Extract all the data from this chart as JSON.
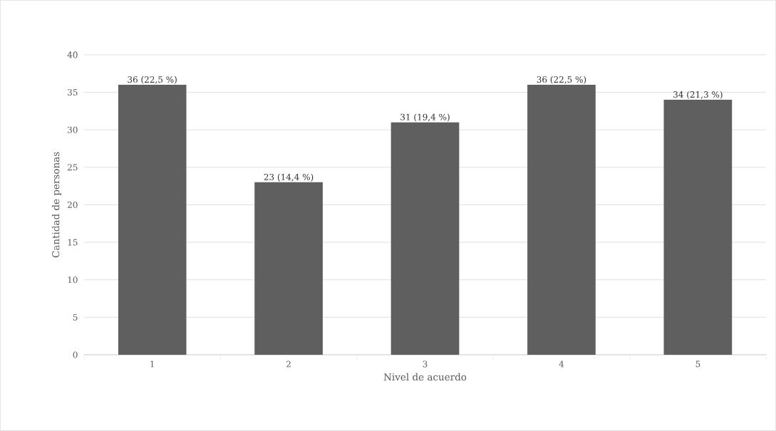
{
  "chart_data": {
    "type": "bar",
    "xlabel": "Nivel de acuerdo",
    "ylabel": "Cantidad de personas",
    "categories": [
      "1",
      "2",
      "3",
      "4",
      "5"
    ],
    "values": [
      36,
      23,
      31,
      36,
      34
    ],
    "value_labels": [
      "36 (22,5 %)",
      "23 (14,4 %)",
      "31 (19,4 %)",
      "36 (22,5 %)",
      "34 (21,3 %)"
    ],
    "color": "#5f5f5f",
    "ylim": [
      0,
      40
    ],
    "yticks": [
      0,
      5,
      10,
      15,
      20,
      25,
      30,
      35,
      40
    ],
    "grid": "y"
  }
}
